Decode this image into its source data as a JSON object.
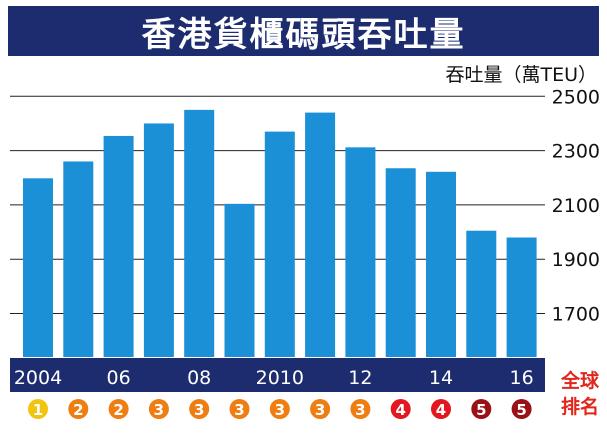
{
  "title": "香港貨櫃碼頭吞吐量",
  "unit_label": "吞吐量（萬TEU）",
  "rank_label": [
    "全球",
    "排名"
  ],
  "colors": {
    "title_bg": "#1c2c6e",
    "bar": "#1b90d6",
    "axis_band": "#1c2c6e",
    "rank_yellow": "#f2c40f",
    "rank_orange": "#ee7d12",
    "rank_red": "#e3171f",
    "rank_darkred": "#9b1016",
    "rank_label": "#e0271d"
  },
  "chart_data": {
    "type": "bar",
    "categories": [
      "2004",
      "2005",
      "2006",
      "2007",
      "2008",
      "2009",
      "2010",
      "2011",
      "2012",
      "2013",
      "2014",
      "2015",
      "2016"
    ],
    "x_tick_labels": [
      "2004",
      "",
      "06",
      "",
      "08",
      "",
      "2010",
      "",
      "12",
      "",
      "14",
      "",
      "16"
    ],
    "values": [
      2198,
      2260,
      2354,
      2400,
      2450,
      2104,
      2370,
      2440,
      2312,
      2235,
      2222,
      2005,
      1980
    ],
    "y_ticks": [
      1700,
      1900,
      2100,
      2300,
      2500
    ],
    "ylim": [
      1540,
      2560
    ],
    "grid": true,
    "title": "香港貨櫃碼頭吞吐量",
    "ylabel": "吞吐量（萬TEU）",
    "global_rank": [
      1,
      2,
      2,
      3,
      3,
      3,
      3,
      3,
      3,
      4,
      4,
      5,
      5
    ]
  }
}
